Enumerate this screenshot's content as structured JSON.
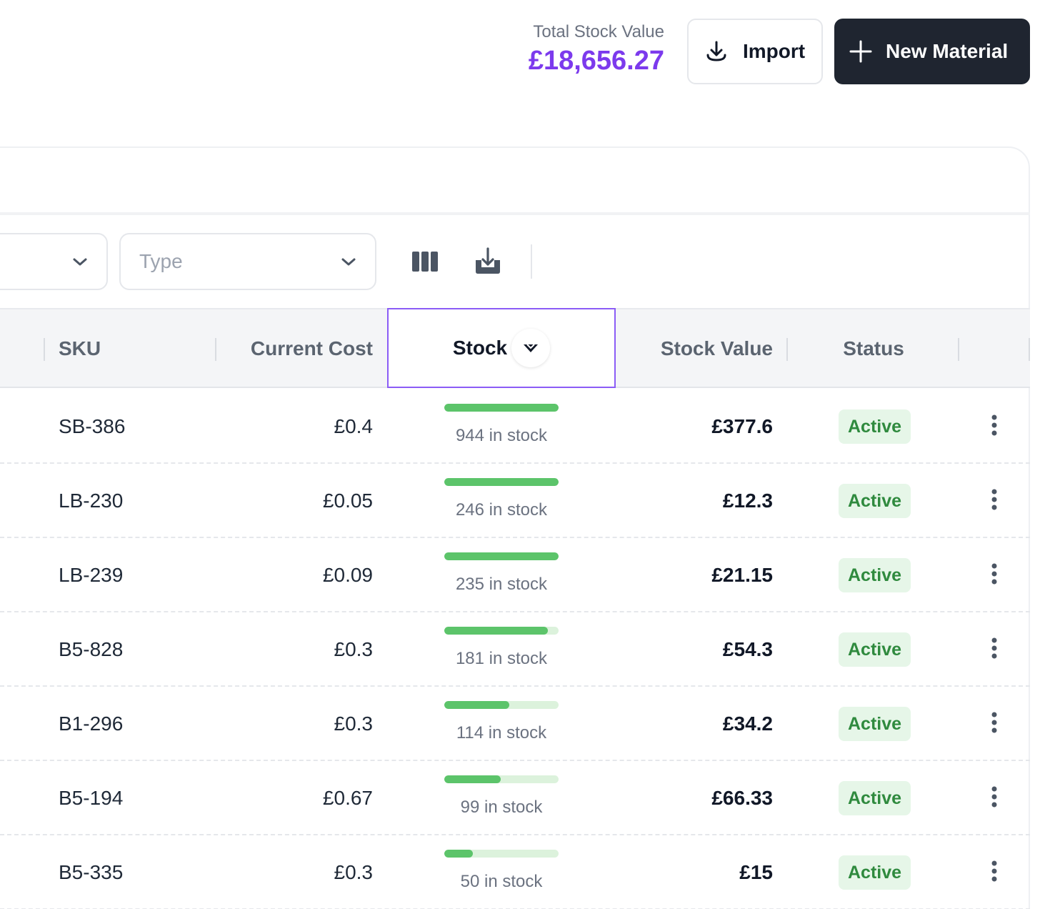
{
  "header": {
    "total_label": "Total Stock Value",
    "total_value": "£18,656.27",
    "import_label": "Import",
    "new_label": "New Material"
  },
  "filters": {
    "type_placeholder": "Type"
  },
  "columns": {
    "sku": "SKU",
    "current_cost": "Current Cost",
    "stock": "Stock",
    "stock_value": "Stock Value",
    "status": "Status"
  },
  "rows": [
    {
      "sku": "SB-386",
      "cost": "£0.4",
      "stock_text": "944 in stock",
      "stock_level": 1.0,
      "value": "£377.6",
      "status": "Active"
    },
    {
      "sku": "LB-230",
      "cost": "£0.05",
      "stock_text": "246 in stock",
      "stock_level": 1.0,
      "value": "£12.3",
      "status": "Active"
    },
    {
      "sku": "LB-239",
      "cost": "£0.09",
      "stock_text": "235 in stock",
      "stock_level": 1.0,
      "value": "£21.15",
      "status": "Active"
    },
    {
      "sku": "B5-828",
      "cost": "£0.3",
      "stock_text": "181 in stock",
      "stock_level": 0.905,
      "value": "£54.3",
      "status": "Active"
    },
    {
      "sku": "B1-296",
      "cost": "£0.3",
      "stock_text": "114 in stock",
      "stock_level": 0.57,
      "value": "£34.2",
      "status": "Active"
    },
    {
      "sku": "B5-194",
      "cost": "£0.67",
      "stock_text": "99 in stock",
      "stock_level": 0.495,
      "value": "£66.33",
      "status": "Active"
    },
    {
      "sku": "B5-335",
      "cost": "£0.3",
      "stock_text": "50 in stock",
      "stock_level": 0.25,
      "value": "£15",
      "status": "Active"
    }
  ],
  "colors": {
    "accent": "#7c3aed",
    "sort_highlight": "#8b5cf6",
    "bar_fill": "#5cc46a",
    "badge_text": "#2f8a3e"
  }
}
